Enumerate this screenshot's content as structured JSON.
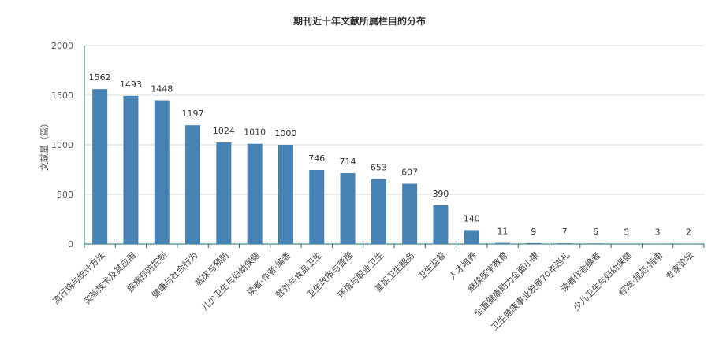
{
  "chart_data": {
    "type": "bar",
    "title": "期刊近十年文献所属栏目的分布",
    "xlabel": "",
    "ylabel": "文献量（篇）",
    "ylim": [
      0,
      2000
    ],
    "yticks": [
      0,
      500,
      1000,
      1500,
      2000
    ],
    "grid": true,
    "bar_color": "#4682b4",
    "categories": [
      "流行病与统计方法",
      "实验技术及其应用",
      "疾病预防控制",
      "健康与社会行为",
      "临床与预防",
      "儿少卫生与妇幼保健",
      "读者·作者·编者",
      "营养与食品卫生",
      "卫生政策与管理",
      "环境与职业卫生",
      "基层卫生服务",
      "卫生监督",
      "人才培养",
      "继续医学教育",
      "全面健康助力全面小康",
      "卫生健康事业发展70年巡礼",
      "读者作者编者",
      "少儿卫生与妇幼保健",
      "标准·规范·指南",
      "专家论坛"
    ],
    "values": [
      1562,
      1493,
      1448,
      1197,
      1024,
      1010,
      1000,
      746,
      714,
      653,
      607,
      390,
      140,
      11,
      9,
      7,
      6,
      5,
      3,
      2
    ]
  }
}
